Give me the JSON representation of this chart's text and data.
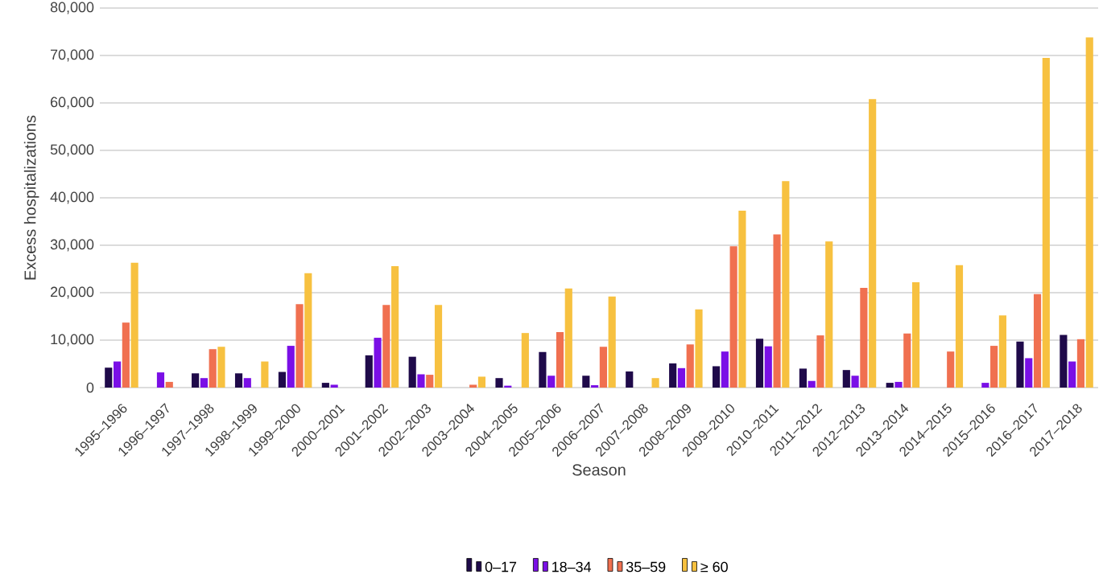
{
  "chart_data": {
    "type": "bar",
    "xlabel": "Season",
    "ylabel": "Excess hospitalizations",
    "categories": [
      "1995–1996",
      "1996–1997",
      "1997–1998",
      "1998–1999",
      "1999–2000",
      "2000–2001",
      "2001–2002",
      "2002–2003",
      "2003–2004",
      "2004–2005",
      "2005–2006",
      "2006–2007",
      "2007–2008",
      "2008–2009",
      "2009–2010",
      "2010–2011",
      "2011–2012",
      "2012–2013",
      "2013–2014",
      "2014–2015",
      "2015–2016",
      "2016–2017",
      "2017–2018"
    ],
    "series": [
      {
        "name": "0–17",
        "color": "#1f0a4a",
        "values": [
          4200,
          0,
          3000,
          3000,
          3300,
          1000,
          6800,
          6500,
          0,
          2000,
          7500,
          2500,
          3400,
          5100,
          4500,
          10300,
          4000,
          3700,
          1000,
          0,
          0,
          9700,
          11100
        ]
      },
      {
        "name": "18–34",
        "color": "#7a0fe6",
        "values": [
          5500,
          3200,
          2000,
          2000,
          8800,
          600,
          10500,
          2800,
          0,
          400,
          2500,
          500,
          0,
          4100,
          7600,
          8700,
          1400,
          2500,
          1200,
          0,
          1000,
          6200,
          5500
        ]
      },
      {
        "name": "35–59",
        "color": "#f07050",
        "values": [
          13700,
          1200,
          8100,
          0,
          17600,
          0,
          17400,
          2700,
          600,
          0,
          11700,
          8600,
          0,
          9100,
          29800,
          32300,
          11000,
          21000,
          11400,
          7600,
          8800,
          19700,
          10200
        ]
      },
      {
        "name": "≥ 60",
        "color": "#f7c140",
        "values": [
          26300,
          0,
          8600,
          5500,
          24100,
          0,
          25600,
          17400,
          2300,
          11500,
          20900,
          19200,
          2000,
          16500,
          37300,
          43500,
          30800,
          60800,
          22200,
          25800,
          15200,
          69500,
          73800
        ]
      }
    ],
    "ylim": [
      0,
      80000
    ],
    "yticks": [
      0,
      {
        "value": 10000,
        "label": "10,000"
      },
      {
        "value": 20000,
        "label": "20,000"
      },
      {
        "value": 30000,
        "label": "30,000"
      },
      {
        "value": 40000,
        "label": "40,000"
      },
      {
        "value": 50000,
        "label": "50,000"
      },
      {
        "value": 60000,
        "label": "60,000"
      },
      {
        "value": 70000,
        "label": "70,000"
      },
      {
        "value": 80000,
        "label": "80,000"
      }
    ],
    "grid": "y",
    "legend": "bottom"
  }
}
